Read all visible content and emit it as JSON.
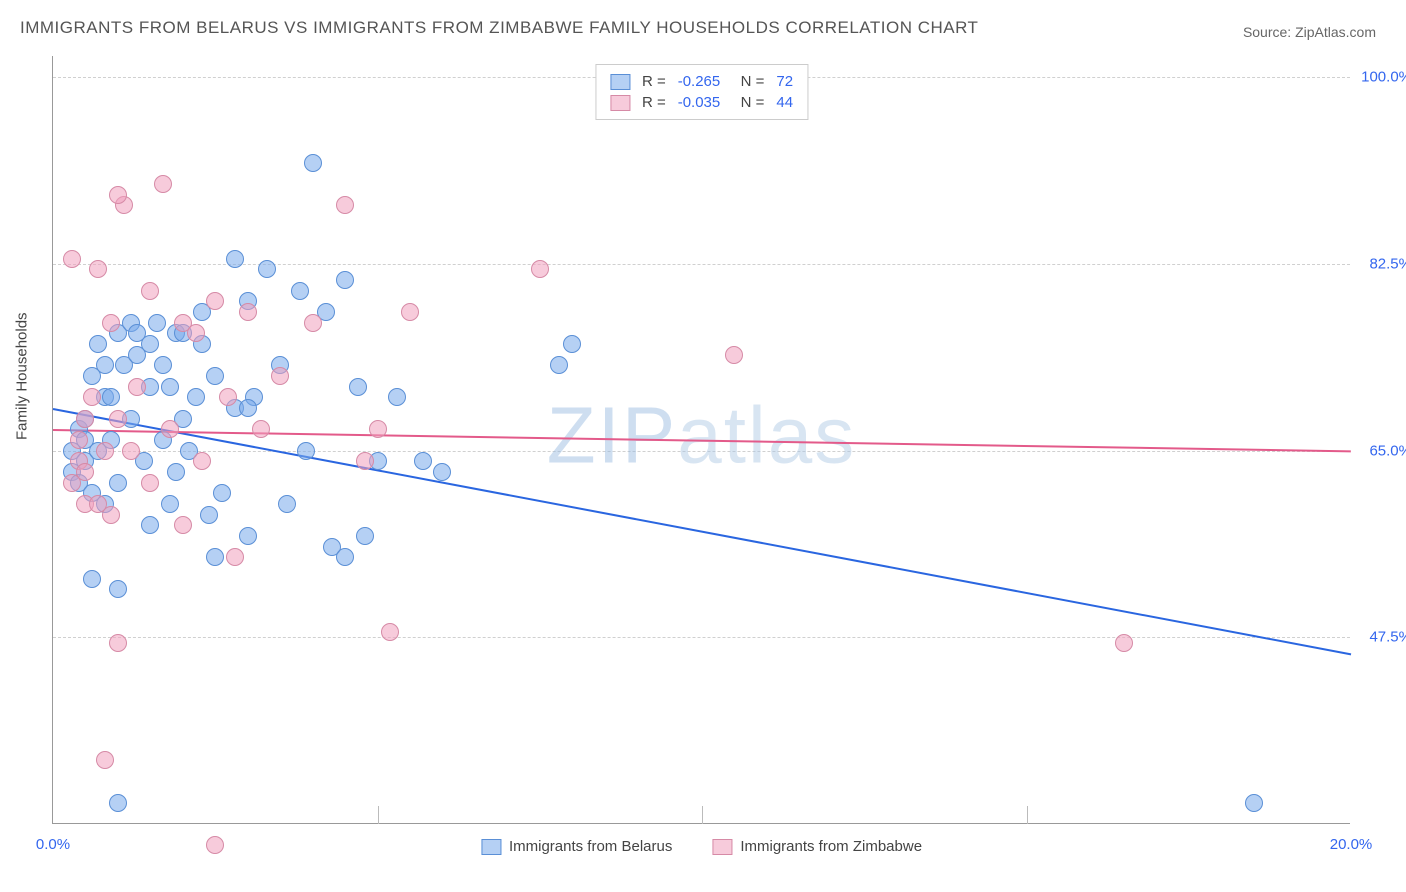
{
  "title": "IMMIGRANTS FROM BELARUS VS IMMIGRANTS FROM ZIMBABWE FAMILY HOUSEHOLDS CORRELATION CHART",
  "source": "Source: ZipAtlas.com",
  "ylabel": "Family Households",
  "watermark_main": "ZIP",
  "watermark_sub": "atlas",
  "chart": {
    "type": "scatter",
    "xlim": [
      0,
      20
    ],
    "ylim": [
      30,
      102
    ],
    "xtick_labels": {
      "0": "0.0%",
      "20": "20.0%"
    },
    "xtick_minor_positions": [
      5,
      10,
      15
    ],
    "ytick_labels": {
      "47.5": "47.5%",
      "65": "65.0%",
      "82.5": "82.5%",
      "100": "100.0%"
    },
    "grid_color": "#d0d0d0",
    "background_color": "#ffffff",
    "axis_color": "#999999",
    "tick_label_color": "#3366ee",
    "point_radius": 9,
    "series": [
      {
        "name": "Immigrants from Belarus",
        "fill": "rgba(120,170,235,0.55)",
        "stroke": "#5a8fd6",
        "line_color": "#2a66e0",
        "R": "-0.265",
        "N": "72",
        "regression": {
          "x1": 0,
          "y1": 69,
          "x2": 20,
          "y2": 46
        },
        "points": [
          [
            0.3,
            65
          ],
          [
            0.3,
            63
          ],
          [
            0.4,
            67
          ],
          [
            0.4,
            62
          ],
          [
            0.5,
            68
          ],
          [
            0.5,
            64
          ],
          [
            0.5,
            66
          ],
          [
            0.6,
            72
          ],
          [
            0.6,
            61
          ],
          [
            0.7,
            75
          ],
          [
            0.7,
            65
          ],
          [
            0.8,
            73
          ],
          [
            0.8,
            70
          ],
          [
            0.8,
            60
          ],
          [
            0.9,
            66
          ],
          [
            0.9,
            70
          ],
          [
            1.0,
            76
          ],
          [
            1.0,
            62
          ],
          [
            1.0,
            52
          ],
          [
            1.1,
            73
          ],
          [
            1.2,
            77
          ],
          [
            1.2,
            68
          ],
          [
            1.3,
            74
          ],
          [
            1.3,
            76
          ],
          [
            1.4,
            64
          ],
          [
            1.5,
            75
          ],
          [
            1.5,
            71
          ],
          [
            1.5,
            58
          ],
          [
            1.6,
            77
          ],
          [
            1.7,
            73
          ],
          [
            1.7,
            66
          ],
          [
            1.8,
            71
          ],
          [
            1.9,
            76
          ],
          [
            1.9,
            63
          ],
          [
            2.0,
            68
          ],
          [
            2.0,
            76
          ],
          [
            2.1,
            65
          ],
          [
            2.2,
            70
          ],
          [
            2.3,
            75
          ],
          [
            2.4,
            59
          ],
          [
            2.5,
            55
          ],
          [
            2.5,
            72
          ],
          [
            2.6,
            61
          ],
          [
            2.8,
            83
          ],
          [
            2.8,
            69
          ],
          [
            3.0,
            79
          ],
          [
            3.0,
            57
          ],
          [
            3.1,
            70
          ],
          [
            3.3,
            82
          ],
          [
            3.5,
            73
          ],
          [
            3.6,
            60
          ],
          [
            3.8,
            80
          ],
          [
            3.9,
            65
          ],
          [
            4.0,
            92
          ],
          [
            4.2,
            78
          ],
          [
            4.3,
            56
          ],
          [
            4.5,
            55
          ],
          [
            4.5,
            81
          ],
          [
            4.7,
            71
          ],
          [
            4.8,
            57
          ],
          [
            5.0,
            64
          ],
          [
            5.3,
            70
          ],
          [
            5.7,
            64
          ],
          [
            6.0,
            63
          ],
          [
            7.8,
            73
          ],
          [
            8.0,
            75
          ],
          [
            1.0,
            32
          ],
          [
            0.6,
            53
          ],
          [
            2.3,
            78
          ],
          [
            1.8,
            60
          ],
          [
            18.5,
            32
          ],
          [
            3.0,
            69
          ]
        ]
      },
      {
        "name": "Immigrants from Zimbabwe",
        "fill": "rgba(240,160,190,0.55)",
        "stroke": "#d68aa6",
        "line_color": "#e35a8a",
        "R": "-0.035",
        "N": "44",
        "regression": {
          "x1": 0,
          "y1": 67,
          "x2": 20,
          "y2": 65
        },
        "points": [
          [
            0.3,
            83
          ],
          [
            0.3,
            62
          ],
          [
            0.4,
            66
          ],
          [
            0.4,
            64
          ],
          [
            0.5,
            68
          ],
          [
            0.5,
            60
          ],
          [
            0.5,
            63
          ],
          [
            0.6,
            70
          ],
          [
            0.7,
            82
          ],
          [
            0.7,
            60
          ],
          [
            0.8,
            65
          ],
          [
            0.9,
            77
          ],
          [
            0.9,
            59
          ],
          [
            1.0,
            47
          ],
          [
            1.0,
            68
          ],
          [
            1.1,
            88
          ],
          [
            1.2,
            65
          ],
          [
            1.3,
            71
          ],
          [
            1.5,
            80
          ],
          [
            1.5,
            62
          ],
          [
            1.7,
            90
          ],
          [
            1.8,
            67
          ],
          [
            2.0,
            77
          ],
          [
            2.0,
            58
          ],
          [
            2.2,
            76
          ],
          [
            2.3,
            64
          ],
          [
            2.5,
            79
          ],
          [
            2.7,
            70
          ],
          [
            2.8,
            55
          ],
          [
            3.0,
            78
          ],
          [
            3.2,
            67
          ],
          [
            3.5,
            72
          ],
          [
            4.0,
            77
          ],
          [
            4.5,
            88
          ],
          [
            4.8,
            64
          ],
          [
            5.0,
            67
          ],
          [
            5.2,
            48
          ],
          [
            5.5,
            78
          ],
          [
            7.5,
            82
          ],
          [
            10.5,
            74
          ],
          [
            2.5,
            28
          ],
          [
            0.8,
            36
          ],
          [
            1.0,
            89
          ],
          [
            16.5,
            47
          ]
        ]
      }
    ]
  },
  "legend_bottom": [
    {
      "label": "Immigrants from Belarus",
      "fill": "rgba(120,170,235,0.55)",
      "stroke": "#5a8fd6"
    },
    {
      "label": "Immigrants from Zimbabwe",
      "fill": "rgba(240,160,190,0.55)",
      "stroke": "#d68aa6"
    }
  ]
}
